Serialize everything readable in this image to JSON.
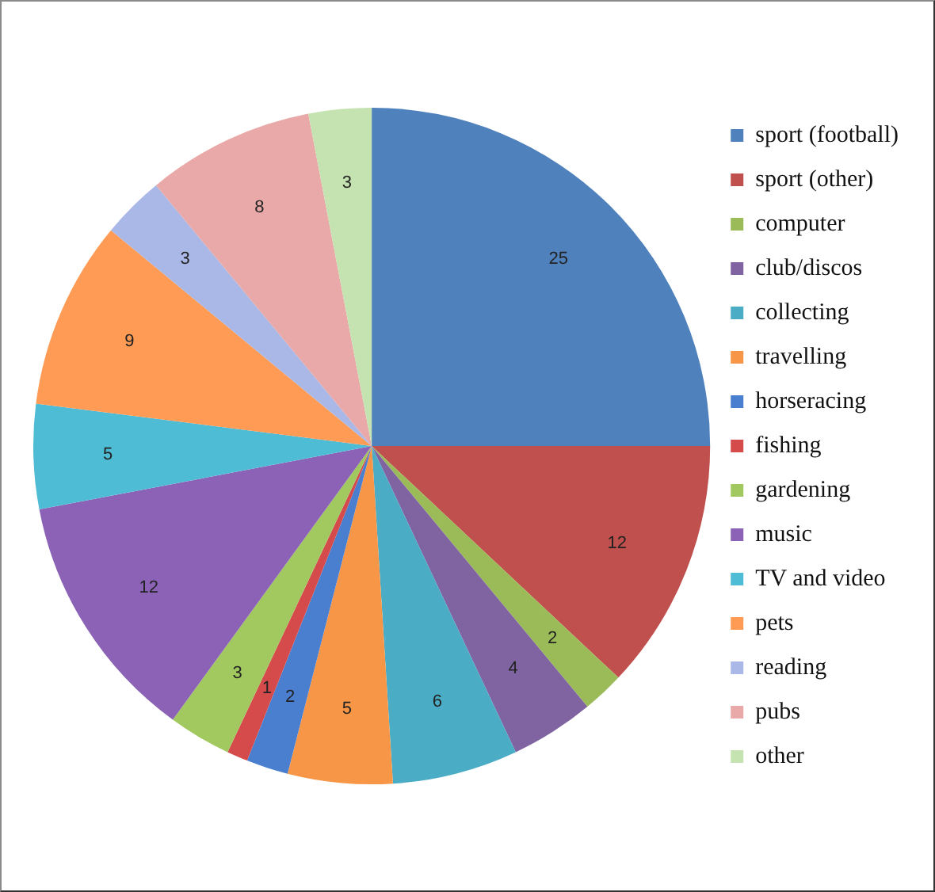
{
  "chart_data": {
    "type": "pie",
    "categories": [
      "sport (football)",
      "sport (other)",
      "computer",
      "club/discos",
      "collecting",
      "travelling",
      "horseracing",
      "fishing",
      "gardening",
      "music",
      "TV and video",
      "pets",
      "reading",
      "pubs",
      "other"
    ],
    "values": [
      25,
      12,
      2,
      4,
      6,
      5,
      2,
      1,
      3,
      12,
      5,
      9,
      3,
      8,
      3
    ],
    "colors": [
      "#4f81bd",
      "#c0504d",
      "#9bbb59",
      "#8064a2",
      "#4bacc6",
      "#f79646",
      "#4a7fd0",
      "#d54b4b",
      "#a2c95f",
      "#8b62b5",
      "#4fbcd6",
      "#ff9b55",
      "#a9b8e6",
      "#e8a9a8",
      "#c5e2b1"
    ],
    "data_labels": true,
    "legend": "right"
  }
}
